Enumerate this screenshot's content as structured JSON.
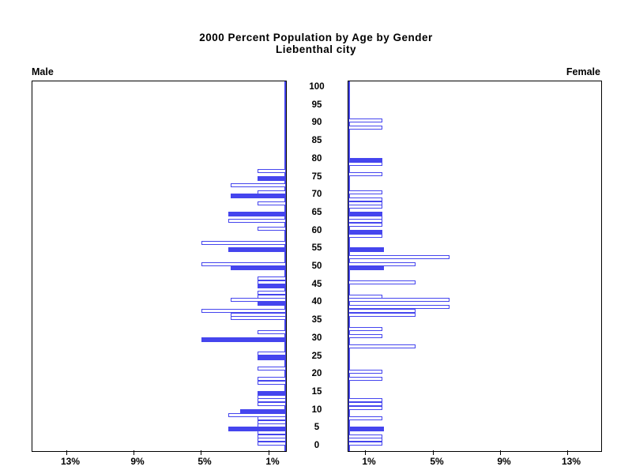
{
  "title": {
    "line1": "2000 Percent Population by Age by Gender",
    "line2": "Liebenthal city"
  },
  "panel_labels": {
    "male": "Male",
    "female": "Female"
  },
  "colors": {
    "bar_blue": "#4545ee",
    "axis_black": "#000000",
    "background": "#ffffff"
  },
  "chart_data": {
    "type": "bar",
    "subtype": "population-pyramid",
    "title": "2000 Percent Population by Age by Gender",
    "subtitle": "Liebenthal city",
    "orientation": "horizontal, male bars extend left, female bars extend right",
    "legend": "solid blue bars = filled highlight years, white bars = blue outline only",
    "age_axis": {
      "min": 0,
      "max": 100,
      "tick_interval": 5,
      "tick_labels": [
        "100",
        "95",
        "90",
        "85",
        "80",
        "75",
        "70",
        "65",
        "60",
        "55",
        "50",
        "45",
        "40",
        "35",
        "30",
        "25",
        "20",
        "15",
        "10",
        "5",
        "0"
      ]
    },
    "pct_axis": {
      "min": 0,
      "max": 15,
      "unit": "%",
      "male_tick_labels": [
        "13%",
        "9%",
        "5%",
        "1%"
      ],
      "male_tick_values": [
        13,
        9,
        5,
        1
      ],
      "female_tick_labels": [
        "1%",
        "5%",
        "9%",
        "13%"
      ],
      "female_tick_values": [
        1,
        5,
        9,
        13
      ]
    },
    "series": [
      {
        "name": "Male",
        "bars": [
          {
            "age": 77,
            "value": 1.7,
            "solid": false
          },
          {
            "age": 75,
            "value": 1.7,
            "solid": true
          },
          {
            "age": 73,
            "value": 3.3,
            "solid": false
          },
          {
            "age": 71,
            "value": 1.7,
            "solid": false
          },
          {
            "age": 70,
            "value": 3.3,
            "solid": true
          },
          {
            "age": 68,
            "value": 1.7,
            "solid": false
          },
          {
            "age": 65,
            "value": 3.4,
            "solid": true
          },
          {
            "age": 63,
            "value": 3.4,
            "solid": false
          },
          {
            "age": 61,
            "value": 1.7,
            "solid": false
          },
          {
            "age": 57,
            "value": 5.0,
            "solid": false
          },
          {
            "age": 55,
            "value": 3.4,
            "solid": true
          },
          {
            "age": 51,
            "value": 5.0,
            "solid": false
          },
          {
            "age": 50,
            "value": 3.3,
            "solid": true
          },
          {
            "age": 47,
            "value": 1.7,
            "solid": false
          },
          {
            "age": 46,
            "value": 1.7,
            "solid": false
          },
          {
            "age": 45,
            "value": 1.7,
            "solid": true
          },
          {
            "age": 43,
            "value": 1.7,
            "solid": false
          },
          {
            "age": 42,
            "value": 1.7,
            "solid": false
          },
          {
            "age": 41,
            "value": 3.3,
            "solid": false
          },
          {
            "age": 40,
            "value": 1.7,
            "solid": true
          },
          {
            "age": 38,
            "value": 5.0,
            "solid": false
          },
          {
            "age": 37,
            "value": 3.3,
            "solid": false
          },
          {
            "age": 36,
            "value": 3.3,
            "solid": false
          },
          {
            "age": 32,
            "value": 1.7,
            "solid": false
          },
          {
            "age": 30,
            "value": 5.0,
            "solid": true
          },
          {
            "age": 26,
            "value": 1.7,
            "solid": false
          },
          {
            "age": 25,
            "value": 1.7,
            "solid": true
          },
          {
            "age": 22,
            "value": 1.7,
            "solid": false
          },
          {
            "age": 19,
            "value": 1.7,
            "solid": false
          },
          {
            "age": 18,
            "value": 1.7,
            "solid": false
          },
          {
            "age": 15,
            "value": 1.7,
            "solid": true
          },
          {
            "age": 14,
            "value": 1.7,
            "solid": false
          },
          {
            "age": 13,
            "value": 1.7,
            "solid": false
          },
          {
            "age": 12,
            "value": 1.7,
            "solid": false
          },
          {
            "age": 10,
            "value": 2.7,
            "solid": true
          },
          {
            "age": 9,
            "value": 3.4,
            "solid": false
          },
          {
            "age": 8,
            "value": 1.7,
            "solid": false
          },
          {
            "age": 7,
            "value": 1.7,
            "solid": false
          },
          {
            "age": 6,
            "value": 1.7,
            "solid": false
          },
          {
            "age": 5,
            "value": 3.4,
            "solid": true
          },
          {
            "age": 4,
            "value": 1.7,
            "solid": false
          },
          {
            "age": 3,
            "value": 1.7,
            "solid": false
          },
          {
            "age": 2,
            "value": 1.7,
            "solid": false
          },
          {
            "age": 1,
            "value": 1.7,
            "solid": false
          }
        ]
      },
      {
        "name": "Female",
        "bars": [
          {
            "age": 91,
            "value": 2.0,
            "solid": false
          },
          {
            "age": 89,
            "value": 2.0,
            "solid": false
          },
          {
            "age": 80,
            "value": 2.0,
            "solid": true
          },
          {
            "age": 79,
            "value": 2.0,
            "solid": false
          },
          {
            "age": 76,
            "value": 2.0,
            "solid": false
          },
          {
            "age": 71,
            "value": 2.0,
            "solid": false
          },
          {
            "age": 69,
            "value": 2.0,
            "solid": false
          },
          {
            "age": 68,
            "value": 2.0,
            "solid": false
          },
          {
            "age": 67,
            "value": 2.0,
            "solid": false
          },
          {
            "age": 65,
            "value": 2.0,
            "solid": true
          },
          {
            "age": 64,
            "value": 2.0,
            "solid": false
          },
          {
            "age": 63,
            "value": 2.0,
            "solid": false
          },
          {
            "age": 62,
            "value": 2.0,
            "solid": false
          },
          {
            "age": 60,
            "value": 2.0,
            "solid": true
          },
          {
            "age": 59,
            "value": 2.0,
            "solid": false
          },
          {
            "age": 55,
            "value": 2.1,
            "solid": true
          },
          {
            "age": 53,
            "value": 6.0,
            "solid": false
          },
          {
            "age": 51,
            "value": 4.0,
            "solid": false
          },
          {
            "age": 50,
            "value": 2.1,
            "solid": true
          },
          {
            "age": 46,
            "value": 4.0,
            "solid": false
          },
          {
            "age": 42,
            "value": 2.0,
            "solid": false
          },
          {
            "age": 41,
            "value": 6.0,
            "solid": false
          },
          {
            "age": 39,
            "value": 6.0,
            "solid": false
          },
          {
            "age": 38,
            "value": 4.0,
            "solid": false
          },
          {
            "age": 37,
            "value": 4.0,
            "solid": false
          },
          {
            "age": 33,
            "value": 2.0,
            "solid": false
          },
          {
            "age": 31,
            "value": 2.0,
            "solid": false
          },
          {
            "age": 28,
            "value": 4.0,
            "solid": false
          },
          {
            "age": 21,
            "value": 2.0,
            "solid": false
          },
          {
            "age": 19,
            "value": 2.0,
            "solid": false
          },
          {
            "age": 13,
            "value": 2.0,
            "solid": false
          },
          {
            "age": 12,
            "value": 2.0,
            "solid": false
          },
          {
            "age": 11,
            "value": 2.0,
            "solid": false
          },
          {
            "age": 8,
            "value": 2.0,
            "solid": false
          },
          {
            "age": 5,
            "value": 2.1,
            "solid": true
          },
          {
            "age": 3,
            "value": 2.0,
            "solid": false
          },
          {
            "age": 2,
            "value": 2.0,
            "solid": false
          },
          {
            "age": 1,
            "value": 2.0,
            "solid": false
          }
        ]
      }
    ]
  }
}
